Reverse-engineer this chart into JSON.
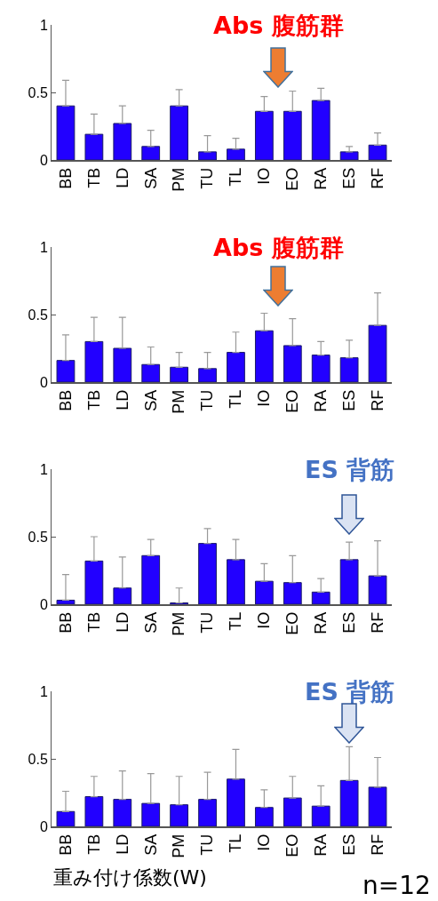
{
  "chart_data": [
    {
      "type": "bar",
      "categories": [
        "BB",
        "TB",
        "LD",
        "SA",
        "PM",
        "TU",
        "TL",
        "IO",
        "EO",
        "RA",
        "ES",
        "RF"
      ],
      "color": "#2200ff",
      "ylim": [
        0,
        1
      ],
      "yticks": [
        0,
        0.5,
        1
      ],
      "values": [
        0.4,
        0.19,
        0.27,
        0.1,
        0.4,
        0.06,
        0.08,
        0.36,
        0.36,
        0.44,
        0.06,
        0.11
      ],
      "errors": [
        [
          0.4,
          0.59
        ],
        [
          0.19,
          0.34
        ],
        [
          0.27,
          0.4
        ],
        [
          0.1,
          0.22
        ],
        [
          0.4,
          0.52
        ],
        [
          0.06,
          0.18
        ],
        [
          0.08,
          0.16
        ],
        [
          0.36,
          0.47
        ],
        [
          0.36,
          0.51
        ],
        [
          0.44,
          0.53
        ],
        [
          0.06,
          0.1
        ],
        [
          0.11,
          0.2
        ]
      ],
      "annotations": [
        "Abs 腹筋群"
      ]
    },
    {
      "type": "bar",
      "categories": [
        "BB",
        "TB",
        "LD",
        "SA",
        "PM",
        "TU",
        "TL",
        "IO",
        "EO",
        "RA",
        "ES",
        "RF"
      ],
      "color": "#2200ff",
      "ylim": [
        0,
        1
      ],
      "yticks": [
        0,
        0.5,
        1
      ],
      "values": [
        0.16,
        0.3,
        0.25,
        0.13,
        0.11,
        0.1,
        0.22,
        0.38,
        0.27,
        0.2,
        0.18,
        0.42
      ],
      "errors": [
        [
          0.16,
          0.35
        ],
        [
          0.3,
          0.48
        ],
        [
          0.25,
          0.48
        ],
        [
          0.13,
          0.26
        ],
        [
          0.11,
          0.22
        ],
        [
          0.1,
          0.22
        ],
        [
          0.22,
          0.37
        ],
        [
          0.38,
          0.51
        ],
        [
          0.27,
          0.47
        ],
        [
          0.2,
          0.3
        ],
        [
          0.18,
          0.31
        ],
        [
          0.42,
          0.66
        ]
      ],
      "annotations": [
        "Abs 腹筋群"
      ]
    },
    {
      "type": "bar",
      "categories": [
        "BB",
        "TB",
        "LD",
        "SA",
        "PM",
        "TU",
        "TL",
        "IO",
        "EO",
        "RA",
        "ES",
        "RF"
      ],
      "color": "#2200ff",
      "ylim": [
        0,
        1
      ],
      "yticks": [
        0,
        0.5,
        1
      ],
      "values": [
        0.03,
        0.32,
        0.12,
        0.36,
        0.01,
        0.45,
        0.33,
        0.17,
        0.16,
        0.09,
        0.33,
        0.21
      ],
      "errors": [
        [
          0.03,
          0.22
        ],
        [
          0.32,
          0.5
        ],
        [
          0.12,
          0.35
        ],
        [
          0.36,
          0.48
        ],
        [
          0.01,
          0.12
        ],
        [
          0.45,
          0.56
        ],
        [
          0.33,
          0.48
        ],
        [
          0.17,
          0.3
        ],
        [
          0.16,
          0.36
        ],
        [
          0.09,
          0.19
        ],
        [
          0.33,
          0.46
        ],
        [
          0.21,
          0.47
        ]
      ],
      "annotations": [
        "ES 背筋"
      ]
    },
    {
      "type": "bar",
      "categories": [
        "BB",
        "TB",
        "LD",
        "SA",
        "PM",
        "TU",
        "TL",
        "IO",
        "EO",
        "RA",
        "ES",
        "RF"
      ],
      "color": "#2200ff",
      "ylim": [
        0,
        1
      ],
      "yticks": [
        0,
        0.5,
        1
      ],
      "values": [
        0.11,
        0.22,
        0.2,
        0.17,
        0.16,
        0.2,
        0.35,
        0.14,
        0.21,
        0.15,
        0.34,
        0.29
      ],
      "errors": [
        [
          0.11,
          0.26
        ],
        [
          0.22,
          0.37
        ],
        [
          0.2,
          0.41
        ],
        [
          0.17,
          0.39
        ],
        [
          0.16,
          0.37
        ],
        [
          0.2,
          0.4
        ],
        [
          0.35,
          0.57
        ],
        [
          0.14,
          0.27
        ],
        [
          0.21,
          0.37
        ],
        [
          0.15,
          0.3
        ],
        [
          0.34,
          0.59
        ],
        [
          0.29,
          0.51
        ]
      ],
      "xlabel": "重み付け係数(W)",
      "annotations": [
        {
          "text": "ES 背筋",
          "x": "ES",
          "y": 0.61
        },
        "n=12"
      ]
    }
  ]
}
